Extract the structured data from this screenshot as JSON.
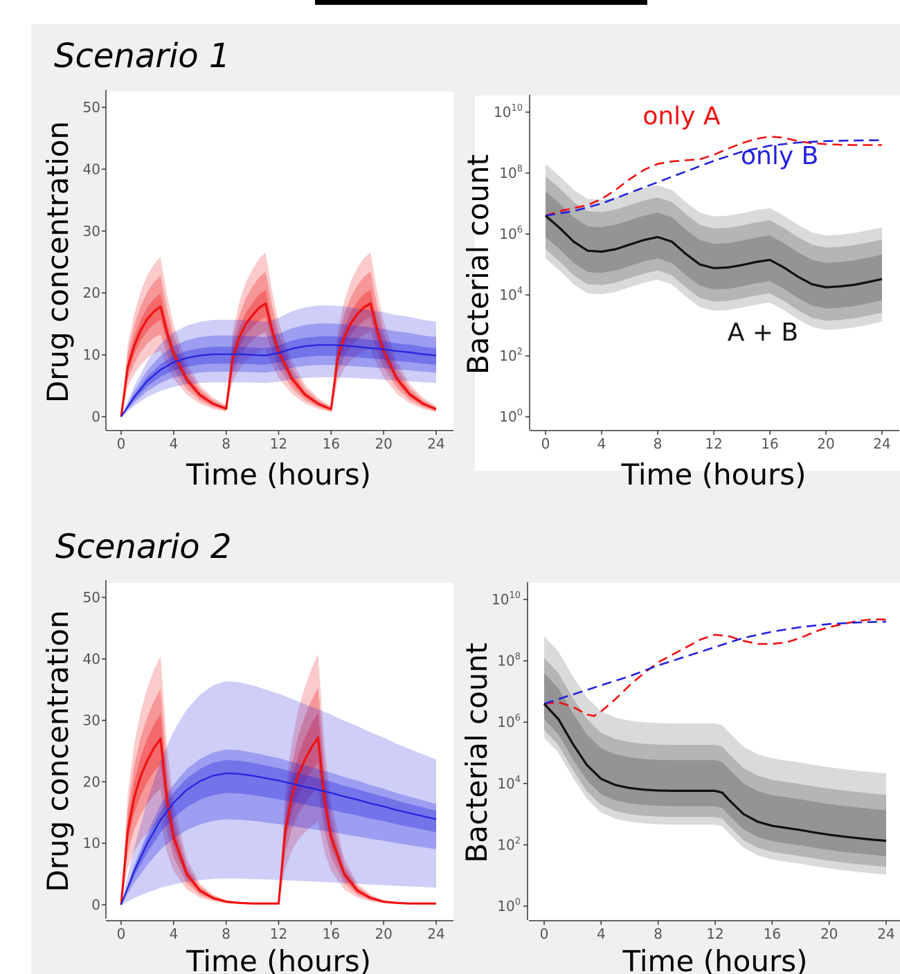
{
  "scenarios": [
    {
      "title": "Scenario 1"
    },
    {
      "title": "Scenario 2"
    }
  ],
  "colors": {
    "drug_A": "#ee1111",
    "drug_B": "#2222dd",
    "combo": "#111111",
    "panel_bg": "#f0f0f0",
    "plot_bg": "#ffffff"
  },
  "chart_data": [
    {
      "id": "s1-drug",
      "type": "line",
      "xlabel": "Time (hours)",
      "ylabel": "Drug concentration",
      "xlim": [
        0,
        24
      ],
      "ylim": [
        0,
        50
      ],
      "xticks": [
        0,
        4,
        8,
        12,
        16,
        20,
        24
      ],
      "yticks": [
        0,
        10,
        20,
        30,
        40,
        50
      ],
      "ribbons": "shaded prediction intervals around each median line",
      "series": [
        {
          "key": "A",
          "color": "#ee1111",
          "x": [
            0,
            0.5,
            1,
            1.5,
            2,
            2.5,
            3,
            3.5,
            4,
            5,
            6,
            7,
            8,
            8.5,
            9,
            9.5,
            10,
            10.5,
            11,
            11.5,
            12,
            13,
            14,
            15,
            16,
            16.5,
            17,
            17.5,
            18,
            18.5,
            19,
            19.5,
            20,
            21,
            22,
            23,
            24
          ],
          "y": [
            0,
            8,
            11.5,
            14,
            15.8,
            17,
            17.8,
            13.5,
            10.2,
            6,
            3.5,
            2.1,
            1.3,
            9.5,
            12.8,
            15,
            16.4,
            17.6,
            18.3,
            14,
            10.5,
            6.2,
            3.6,
            2.1,
            1.2,
            9.6,
            12.9,
            15.1,
            16.6,
            17.7,
            18.3,
            14,
            10.6,
            6.2,
            3.6,
            2.1,
            1.2
          ],
          "band_inner": [
            0.88,
            1.12
          ],
          "band_mid": [
            0.75,
            1.28
          ],
          "band_outer": [
            0.6,
            1.45
          ]
        },
        {
          "key": "B",
          "color": "#2222dd",
          "x": [
            0,
            1,
            2,
            3,
            4,
            5,
            6,
            7,
            8,
            9,
            10,
            11,
            12,
            13,
            14,
            15,
            16,
            17,
            18,
            19,
            20,
            21,
            22,
            23,
            24
          ],
          "y": [
            0,
            3.2,
            5.8,
            7.6,
            8.8,
            9.5,
            9.9,
            10.1,
            10.1,
            10.1,
            10,
            9.9,
            10.3,
            11,
            11.4,
            11.6,
            11.6,
            11.5,
            11.3,
            11.1,
            10.9,
            10.6,
            10.4,
            10.1,
            9.9
          ],
          "band_inner": [
            0.85,
            1.12
          ],
          "band_mid": [
            0.72,
            1.3
          ],
          "band_outer": [
            0.55,
            1.55
          ]
        }
      ]
    },
    {
      "id": "s1-bact",
      "type": "line",
      "xlabel": "Time (hours)",
      "ylabel": "Bacterial count",
      "xlim": [
        0,
        24
      ],
      "ylim": [
        0,
        10
      ],
      "log_y": true,
      "xticks": [
        0,
        4,
        8,
        12,
        16,
        20,
        24
      ],
      "yticks": [
        0,
        2,
        4,
        6,
        8,
        10
      ],
      "ytick_labels": [
        "10",
        "10",
        "10",
        "10",
        "10",
        "10"
      ],
      "ytick_exponents": [
        "0",
        "2",
        "4",
        "6",
        "8",
        "10"
      ],
      "annotations": [
        {
          "text": "only A",
          "x": 9.7,
          "y": 9.6,
          "color": "#ee1111"
        },
        {
          "text": "only B",
          "x": 16.7,
          "y": 8.3,
          "color": "#2222dd"
        },
        {
          "text": "A + B",
          "x": 15.5,
          "y": 2.5,
          "color": "#111111"
        }
      ],
      "series": [
        {
          "key": "A",
          "style": "dashed",
          "color": "#ee1111",
          "x": [
            0,
            1,
            2,
            3,
            4,
            5,
            6,
            7,
            8,
            9,
            10,
            11,
            12,
            13,
            14,
            15,
            16,
            17,
            18,
            19,
            20,
            21,
            22,
            23,
            24
          ],
          "y": [
            6.6,
            6.75,
            6.85,
            6.95,
            7.15,
            7.45,
            7.8,
            8.1,
            8.3,
            8.38,
            8.42,
            8.45,
            8.6,
            8.8,
            8.98,
            9.12,
            9.2,
            9.16,
            9.05,
            8.98,
            8.95,
            8.93,
            8.92,
            8.92,
            8.92
          ]
        },
        {
          "key": "B",
          "style": "dashed",
          "color": "#2222dd",
          "x": [
            0,
            2,
            4,
            6,
            8,
            10,
            12,
            14,
            16,
            18,
            20,
            22,
            24
          ],
          "y": [
            6.6,
            6.75,
            7.0,
            7.35,
            7.7,
            8.05,
            8.4,
            8.7,
            8.9,
            9.0,
            9.05,
            9.07,
            9.08
          ]
        },
        {
          "key": "A + B",
          "style": "solid",
          "color": "#111111",
          "x": [
            0,
            1,
            2,
            3,
            4,
            5,
            6,
            7,
            8,
            9,
            10,
            11,
            12,
            13,
            14,
            15,
            16,
            17,
            18,
            19,
            20,
            21,
            22,
            23,
            24
          ],
          "y": [
            6.6,
            6.2,
            5.75,
            5.45,
            5.42,
            5.5,
            5.65,
            5.8,
            5.9,
            5.75,
            5.35,
            5.0,
            4.88,
            4.9,
            4.98,
            5.08,
            5.15,
            4.9,
            4.6,
            4.35,
            4.25,
            4.28,
            4.33,
            4.42,
            4.52
          ],
          "band_inner": [
            0.7,
            0.8
          ],
          "band_mid": [
            1.1,
            1.3
          ],
          "band_outer": [
            1.4,
            1.7
          ]
        }
      ]
    },
    {
      "id": "s2-drug",
      "type": "line",
      "xlabel": "Time (hours)",
      "ylabel": "Drug concentration",
      "xlim": [
        0,
        24
      ],
      "ylim": [
        0,
        50
      ],
      "xticks": [
        0,
        4,
        8,
        12,
        16,
        20,
        24
      ],
      "yticks": [
        0,
        10,
        20,
        30,
        40,
        50
      ],
      "series": [
        {
          "key": "A",
          "color": "#ee1111",
          "x": [
            0,
            0.5,
            1,
            1.5,
            2,
            2.5,
            3,
            3.5,
            4,
            5,
            6,
            7,
            8,
            9,
            10,
            11,
            12,
            12.5,
            13,
            13.5,
            14,
            14.5,
            15,
            15.5,
            16,
            17,
            18,
            19,
            20,
            21,
            22,
            23,
            24
          ],
          "y": [
            0,
            12,
            17.5,
            21,
            23.5,
            25.5,
            27,
            17,
            11,
            5,
            2.3,
            1.1,
            0.5,
            0.3,
            0.2,
            0.2,
            0.2,
            12,
            17.6,
            21.2,
            23.6,
            25.6,
            27.2,
            17,
            11,
            5,
            2.3,
            1.1,
            0.5,
            0.3,
            0.2,
            0.2,
            0.2
          ],
          "band_inner": [
            0.85,
            1.15
          ],
          "band_mid": [
            0.7,
            1.3
          ],
          "band_outer": [
            0.5,
            1.5
          ]
        },
        {
          "key": "B",
          "color": "#2222dd",
          "x": [
            0,
            1,
            2,
            3,
            4,
            5,
            6,
            7,
            8,
            9,
            10,
            11,
            12,
            13,
            14,
            15,
            16,
            17,
            18,
            19,
            20,
            21,
            22,
            23,
            24
          ],
          "y": [
            0,
            5.5,
            10,
            13.8,
            16.6,
            18.7,
            20.1,
            21,
            21.4,
            21.3,
            21,
            20.6,
            20.2,
            19.7,
            19.2,
            18.7,
            18.2,
            17.6,
            17.1,
            16.5,
            16,
            15.4,
            14.9,
            14.4,
            13.9
          ],
          "band_inner": [
            0.85,
            1.1
          ],
          "band_mid": [
            0.65,
            1.18
          ],
          "band_outer": [
            0.2,
            1.7
          ]
        }
      ]
    },
    {
      "id": "s2-bact",
      "type": "line",
      "xlabel": "Time (hours)",
      "ylabel": "Bacterial count",
      "xlim": [
        0,
        24
      ],
      "ylim": [
        0,
        10
      ],
      "log_y": true,
      "xticks": [
        0,
        4,
        8,
        12,
        16,
        20,
        24
      ],
      "yticks": [
        0,
        2,
        4,
        6,
        8,
        10
      ],
      "ytick_labels": [
        "10",
        "10",
        "10",
        "10",
        "10",
        "10"
      ],
      "ytick_exponents": [
        "0",
        "2",
        "4",
        "6",
        "8",
        "10"
      ],
      "series": [
        {
          "key": "A",
          "style": "dashed",
          "color": "#ee1111",
          "x": [
            0,
            1,
            2,
            3,
            3.5,
            4,
            5,
            6,
            7,
            8,
            9,
            10,
            11,
            12,
            13,
            14,
            15,
            16,
            17,
            18,
            19,
            20,
            21,
            22,
            23,
            24
          ],
          "y": [
            6.6,
            6.65,
            6.5,
            6.25,
            6.2,
            6.35,
            6.75,
            7.2,
            7.6,
            7.95,
            8.2,
            8.45,
            8.7,
            8.85,
            8.8,
            8.65,
            8.55,
            8.55,
            8.6,
            8.75,
            8.95,
            9.1,
            9.2,
            9.3,
            9.35,
            9.35
          ]
        },
        {
          "key": "B",
          "style": "dashed",
          "color": "#2222dd",
          "x": [
            0,
            2,
            4,
            6,
            8,
            10,
            12,
            14,
            16,
            18,
            20,
            22,
            24
          ],
          "y": [
            6.6,
            6.9,
            7.2,
            7.5,
            7.85,
            8.15,
            8.45,
            8.75,
            8.95,
            9.1,
            9.2,
            9.25,
            9.28
          ]
        },
        {
          "key": "A + B",
          "style": "solid",
          "color": "#111111",
          "x": [
            0,
            1,
            2,
            3,
            4,
            5,
            6,
            7,
            8,
            9,
            10,
            11,
            12,
            12.5,
            13,
            14,
            15,
            16,
            17,
            18,
            19,
            20,
            21,
            22,
            23,
            24
          ],
          "y": [
            6.6,
            6.1,
            5.3,
            4.6,
            4.15,
            3.95,
            3.85,
            3.8,
            3.77,
            3.76,
            3.76,
            3.76,
            3.76,
            3.7,
            3.45,
            3.0,
            2.75,
            2.62,
            2.55,
            2.48,
            2.4,
            2.33,
            2.27,
            2.22,
            2.17,
            2.13
          ],
          "band_inner": [
            0.5,
            1.0
          ],
          "band_mid": [
            0.85,
            1.5
          ],
          "band_outer": [
            1.1,
            2.2
          ]
        }
      ]
    }
  ]
}
